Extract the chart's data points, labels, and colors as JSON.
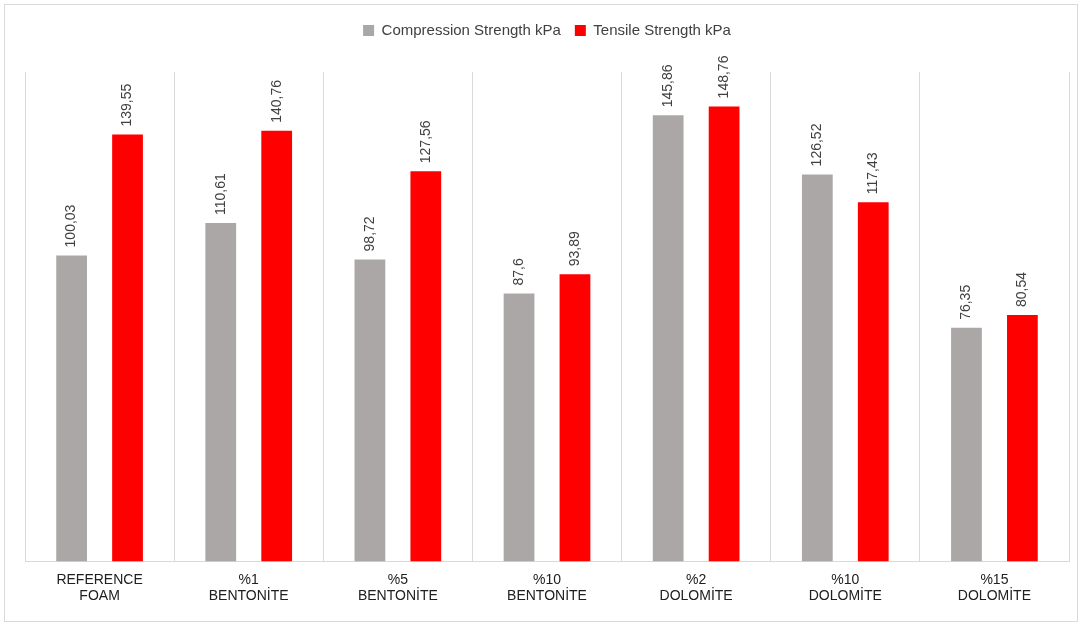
{
  "chart_data": {
    "type": "bar",
    "categories": [
      "REFERENCE FOAM",
      "%1 BENTONİTE",
      "%5 BENTONİTE",
      "%10 BENTONİTE",
      "%2 DOLOMİTE",
      "%10 DOLOMİTE",
      "%15 DOLOMİTE"
    ],
    "series": [
      {
        "name": "Compression Strength kPa",
        "color": "#aba7a7",
        "values": [
          100.03,
          110.61,
          98.72,
          87.6,
          145.86,
          126.52,
          76.35
        ],
        "value_labels": [
          "100,03",
          "110,61",
          "98,72",
          "87,6",
          "145,86",
          "126,52",
          "76,35"
        ]
      },
      {
        "name": "Tensile Strength kPa",
        "color": "#ff0000",
        "values": [
          139.55,
          140.76,
          127.56,
          93.89,
          148.76,
          117.43,
          80.54
        ],
        "value_labels": [
          "139,55",
          "140,76",
          "127,56",
          "93,89",
          "148,76",
          "117,43",
          "80,54"
        ]
      }
    ],
    "ylim": [
      0,
      160
    ],
    "grid": "x",
    "legend": "top",
    "tick_labels": "x"
  }
}
